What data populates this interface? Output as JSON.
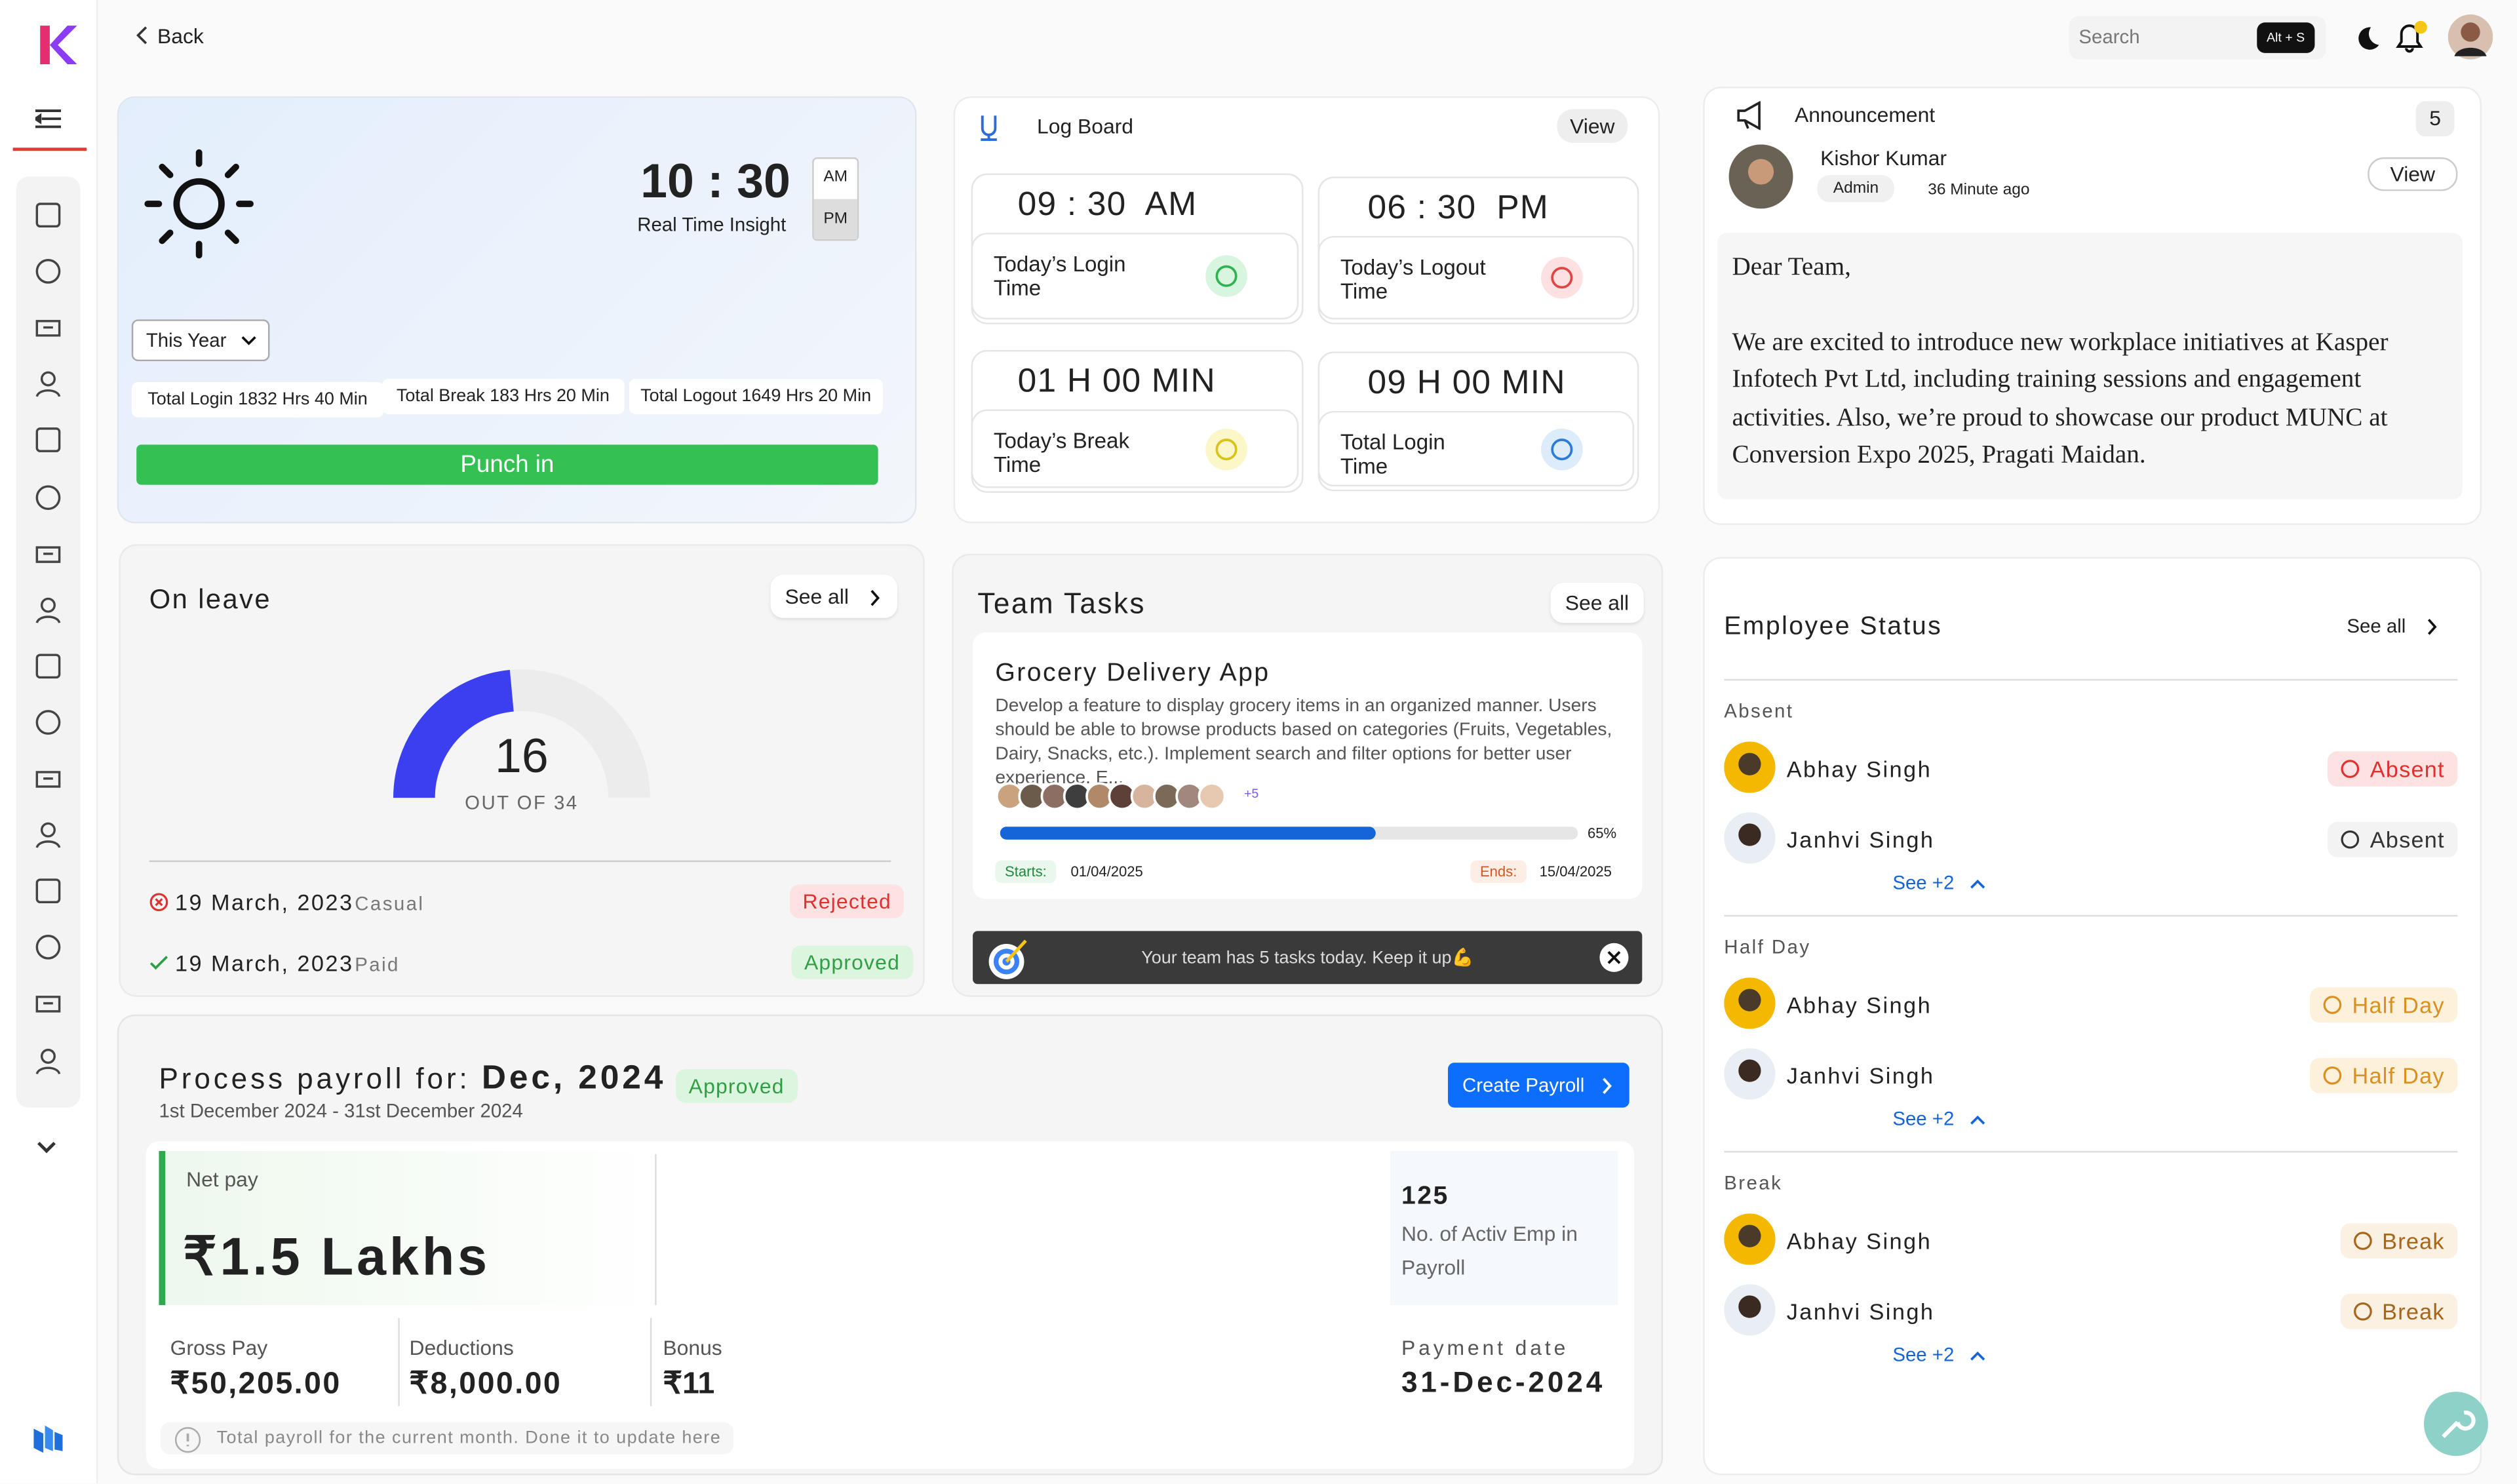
{
  "topbar": {
    "back": "Back",
    "search_placeholder": "Search",
    "shortcut": "Alt + S"
  },
  "clock": {
    "time": "10 : 30",
    "am": "AM",
    "pm": "PM",
    "subtitle": "Real Time Insight",
    "period": "This Year",
    "total_login": "Total Login 1832 Hrs 40 Min",
    "total_break": "Total Break 183 Hrs 20 Min",
    "total_logout": "Total Logout 1649 Hrs 20 Min",
    "punch": "Punch in"
  },
  "log_board": {
    "title": "Log Board",
    "view": "View",
    "tiles": [
      {
        "time": "09 : 30  AM",
        "label": "Today’s Login Time"
      },
      {
        "time": "06 : 30  PM",
        "label": "Today’s Logout Time"
      },
      {
        "time": "01 H 00 MIN",
        "label": "Today’s Break Time"
      },
      {
        "time": "09 H 00 MIN",
        "label": "Total Login Time"
      }
    ]
  },
  "announcement": {
    "title": "Announcement",
    "count": 5,
    "author": "Kishor Kumar",
    "role": "Admin",
    "time": "36 Minute ago",
    "view": "View",
    "greeting": "Dear Team,",
    "body": "We are excited to introduce new workplace initiatives at Kasper Infotech Pvt Ltd, including training sessions and engagement activities. Also, we’re proud to showcase our product MUNC at Conversion Expo 2025, Pragati Maidan."
  },
  "on_leave": {
    "title": "On leave",
    "see_all": "See all",
    "count": 16,
    "out_of": "OUT OF",
    "total": 34,
    "items": [
      {
        "date": "19 March, 2023",
        "type": "Casual",
        "status": "Rejected"
      },
      {
        "date": "19 March, 2023",
        "type": "Paid",
        "status": "Approved"
      }
    ]
  },
  "team_tasks": {
    "title": "Team Tasks",
    "see_all": "See all",
    "task": {
      "name": "Grocery Delivery App",
      "description": "Develop a feature to display grocery items in an organized manner. Users should be able to browse products based on categories (Fruits, Vegetables, Dairy, Snacks, etc.). Implement search and filter options for better user experience. E...",
      "more_assignees": "+5",
      "progress": 65,
      "progress_label": "65%",
      "starts_label": "Starts:",
      "starts": "01/04/2025",
      "ends_label": "Ends:",
      "ends": "15/04/2025"
    },
    "banner": "Your team has 5 tasks today. Keep it up💪"
  },
  "payroll": {
    "title": "Process payroll for:",
    "period": "Dec, 2024",
    "status": "Approved",
    "range": "1st December 2024 - 31st December 2024",
    "create": "Create Payroll",
    "net_pay_label": "Net pay",
    "net_pay": "₹1.5 Lakhs",
    "active_count": 125,
    "active_label": "No. of Activ Emp in Payroll",
    "gross_label": "Gross Pay",
    "gross": "₹50,205.00",
    "deductions_label": "Deductions",
    "deductions": "₹8,000.00",
    "bonus_label": "Bonus",
    "bonus": "₹11",
    "payment_date_label": "Payment date",
    "payment_date": "31-Dec-2024",
    "note": "Total payroll for the current month. Done it to update here"
  },
  "employee_status": {
    "title": "Employee Status",
    "see_all": "See all",
    "groups": [
      {
        "name": "Absent",
        "employees": [
          {
            "name": "Abhay Singh",
            "status": "Absent"
          },
          {
            "name": "Janhvi Singh",
            "status": "Absent"
          }
        ],
        "more": "See +2"
      },
      {
        "name": "Half Day",
        "employees": [
          {
            "name": "Abhay Singh",
            "status": "Half Day"
          },
          {
            "name": "Janhvi Singh",
            "status": "Half Day"
          }
        ],
        "more": "See +2"
      },
      {
        "name": "Break",
        "employees": [
          {
            "name": "Abhay Singh",
            "status": "Break"
          },
          {
            "name": "Janhvi Singh",
            "status": "Break"
          }
        ],
        "more": "See +2"
      }
    ]
  }
}
